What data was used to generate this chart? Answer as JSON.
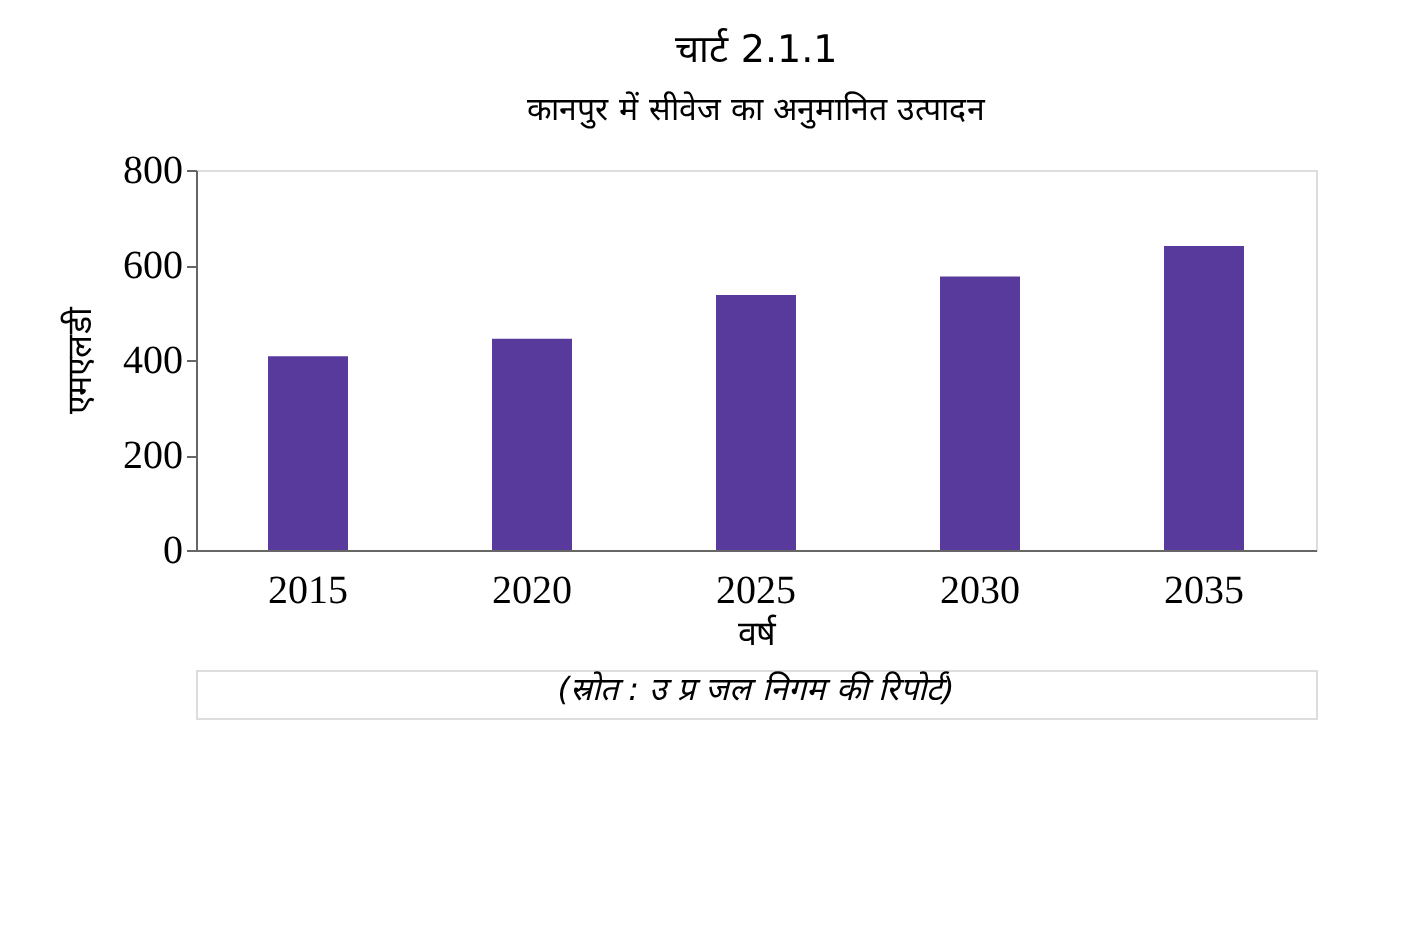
{
  "chart_data": {
    "type": "bar",
    "title": "चार्ट 2.1.1",
    "subtitle": "कानपुर में सीवेज का अनुमानित उत्पादन",
    "xlabel": "वर्ष",
    "ylabel": "एमएलडी",
    "categories": [
      "2015",
      "2020",
      "2025",
      "2030",
      "2035"
    ],
    "series": [
      {
        "color": "#573a9c",
        "values": [
          408,
          445,
          537,
          576,
          640
        ]
      }
    ],
    "ylim": [
      0,
      800
    ],
    "yticks": [
      0,
      200,
      400,
      600,
      800
    ],
    "grid": false,
    "legend": false,
    "annotations": [
      "(स्रोत : उ प्र जल निगम की रिपोर्ट)"
    ]
  }
}
